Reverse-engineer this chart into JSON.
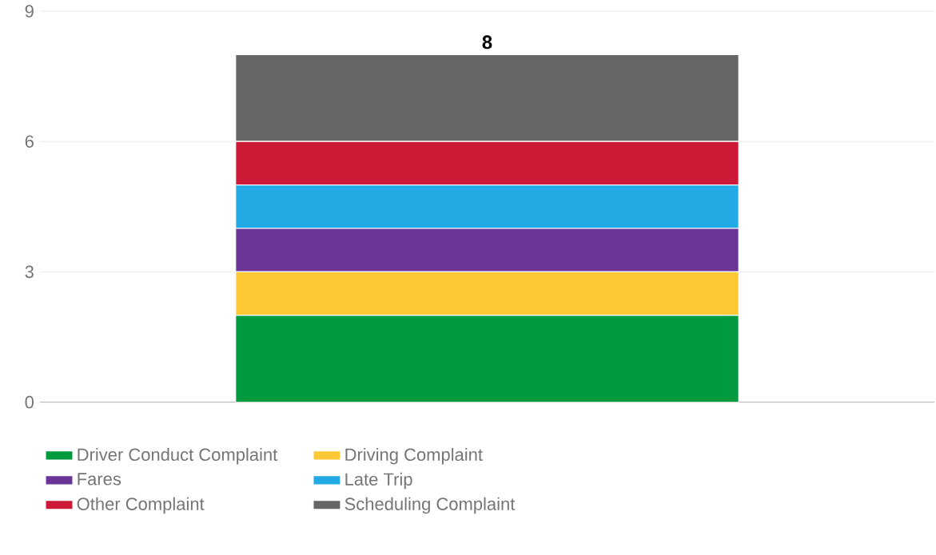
{
  "chart_data": {
    "type": "bar",
    "stacked": true,
    "categories": [
      null
    ],
    "series": [
      {
        "name": "Driver Conduct Complaint",
        "color": "#009a3e",
        "values": [
          2
        ]
      },
      {
        "name": "Driving Complaint",
        "color": "#fcc934",
        "values": [
          1
        ]
      },
      {
        "name": "Fares",
        "color": "#6a3597",
        "values": [
          1
        ]
      },
      {
        "name": "Late Trip",
        "color": "#21aae4",
        "values": [
          1
        ]
      },
      {
        "name": "Other Complaint",
        "color": "#cc1a36",
        "values": [
          1
        ]
      },
      {
        "name": "Scheduling Complaint",
        "color": "#666666",
        "values": [
          2
        ]
      }
    ],
    "totals": [
      "8"
    ],
    "ylim": [
      0,
      9
    ],
    "yticks": [
      0,
      3,
      6,
      9
    ],
    "grid": "y",
    "legend": "bottom"
  }
}
